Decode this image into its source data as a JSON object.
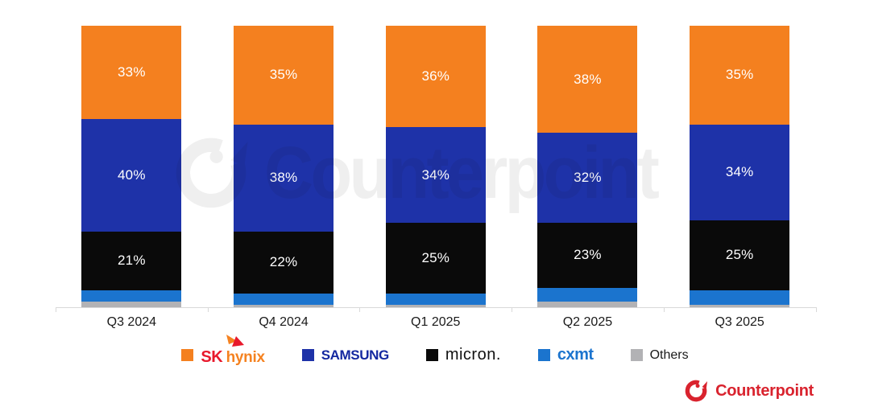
{
  "chart_data": {
    "type": "bar",
    "subtype": "stacked-100-percent",
    "unit": "%",
    "categories": [
      "Q3 2024",
      "Q4 2024",
      "Q1 2025",
      "Q2 2025",
      "Q3 2025"
    ],
    "series": [
      {
        "name": "SK hynix",
        "color": "#F4801F",
        "values": [
          33,
          35,
          36,
          38,
          35
        ],
        "labeled": true
      },
      {
        "name": "Samsung",
        "color": "#1E32A8",
        "values": [
          40,
          38,
          34,
          32,
          34
        ],
        "labeled": true
      },
      {
        "name": "Micron",
        "color": "#0A0A0A",
        "values": [
          21,
          22,
          25,
          23,
          25
        ],
        "labeled": true
      },
      {
        "name": "CXMT",
        "color": "#1B74CE",
        "values": [
          4,
          4,
          4,
          5,
          5
        ],
        "labeled": false
      },
      {
        "name": "Others",
        "color": "#B2B2B5",
        "values": [
          2,
          1,
          1,
          2,
          1
        ],
        "labeled": false
      }
    ],
    "ylim": [
      0,
      100
    ],
    "grid": false,
    "legend_position": "bottom"
  },
  "watermark": {
    "text": "Counterpoint"
  },
  "legend": {
    "sk_hynix": {
      "sk": "SK",
      "hynix": "hynix"
    },
    "samsung": {
      "label": "SAMSUNG"
    },
    "micron": {
      "label": "micron."
    },
    "cxmt": {
      "label": "cxmt"
    },
    "others": {
      "label": "Others"
    }
  },
  "footer": {
    "brand": "Counterpoint"
  },
  "colors": {
    "sk_red": "#E8192C",
    "sk_orange": "#F58220",
    "samsung_blue": "#1428A0",
    "micron_black": "#111111",
    "cxmt_blue": "#1B74CE",
    "others_gray": "#B2B2B5",
    "counterpoint_red": "#D9232E",
    "axis": "#D9D9D9",
    "watermark_gray": "#EFEFEF",
    "bar_label_text": "#FFFFFF",
    "axis_label_text": "#1A1A1A"
  }
}
